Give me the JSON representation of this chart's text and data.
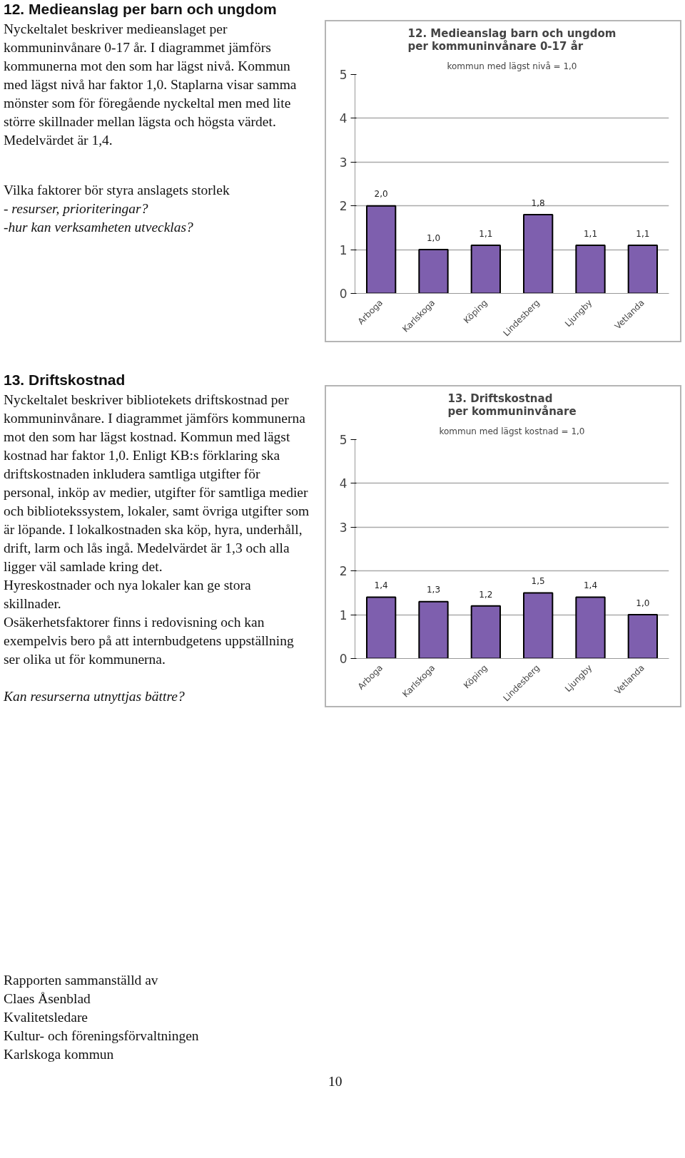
{
  "chart_data": [
    {
      "type": "bar",
      "title": "12. Medieanslag barn och ungdom\nper kommuninvånare 0-17 år",
      "subtitle": "kommun med lägst nivå = 1,0",
      "categories": [
        "Arboga",
        "Karlskoga",
        "Köping",
        "Lindesberg",
        "Ljungby",
        "Vetlanda"
      ],
      "values": [
        2.0,
        1.0,
        1.1,
        1.8,
        1.1,
        1.1
      ],
      "value_labels": [
        "2,0",
        "1,0",
        "1,1",
        "1,8",
        "1,1",
        "1,1"
      ],
      "color": "#7e5fae",
      "ylim": [
        0,
        5
      ],
      "yticks": [
        0,
        1,
        2,
        3,
        4,
        5
      ],
      "grid": "y",
      "annotations": [
        "12. Medieanslag per barn och ungdom",
        "Nyckeltalet beskriver medieanslaget per kommuninvånare 0-17 år. I diagrammet jämförs kommunerna mot den som har lägst nivå. Kommun med lägst nivå har faktor 1,0. Staplarna visar samma mönster som för föregående nyckeltal men med lite större skillnader mellan lägsta och högsta värdet. Medelvärdet är 1,4.",
        "Vilka faktorer bör styra anslagets storlek",
        "- resurser, prioriteringar?",
        "-hur kan verksamheten utvecklas?"
      ]
    },
    {
      "type": "bar",
      "title": "13. Driftskostnad\nper kommuninvånare",
      "subtitle": "kommun med lägst kostnad = 1,0",
      "categories": [
        "Arboga",
        "Karlskoga",
        "Köping",
        "Lindesberg",
        "Ljungby",
        "Vetlanda"
      ],
      "values": [
        1.4,
        1.3,
        1.2,
        1.5,
        1.4,
        1.0
      ],
      "value_labels": [
        "1,4",
        "1,3",
        "1,2",
        "1,5",
        "1,4",
        "1,0"
      ],
      "color": "#7e5fae",
      "ylim": [
        0,
        5
      ],
      "yticks": [
        0,
        1,
        2,
        3,
        4,
        5
      ],
      "grid": "y",
      "annotations": [
        "13. Driftskostnad",
        "Nyckeltalet beskriver bibliotekets driftskostnad per kommuninvånare. I diagrammet jämförs kommunerna mot den som har lägst kostnad. Kommun med lägst kostnad har faktor 1,0. Enligt KB:s förklaring ska driftskostnaden inkludera samtliga utgifter för personal, inköp av medier, utgifter för samtliga medier och bibliotekssystem, lokaler, samt övriga utgifter som är löpande. I lokalkostnaden ska köp, hyra, underhåll, drift, larm och lås ingå. Medelvärdet är 1,3 och alla ligger väl samlade kring det.",
        "Hyreskostnader och nya lokaler kan ge stora skillnader.",
        "Osäkerhetsfaktorer finns i redovisning och kan exempelvis bero på att internbudgetens uppställning ser olika ut för kommunerna.",
        "Kan resurserna utnyttjas bättre?",
        "Rapporten sammanställd av",
        "Claes Åsenblad",
        "Kvalitetsledare",
        "Kultur- och föreningsförvaltningen",
        "Karlskoga kommun",
        "10"
      ]
    }
  ]
}
